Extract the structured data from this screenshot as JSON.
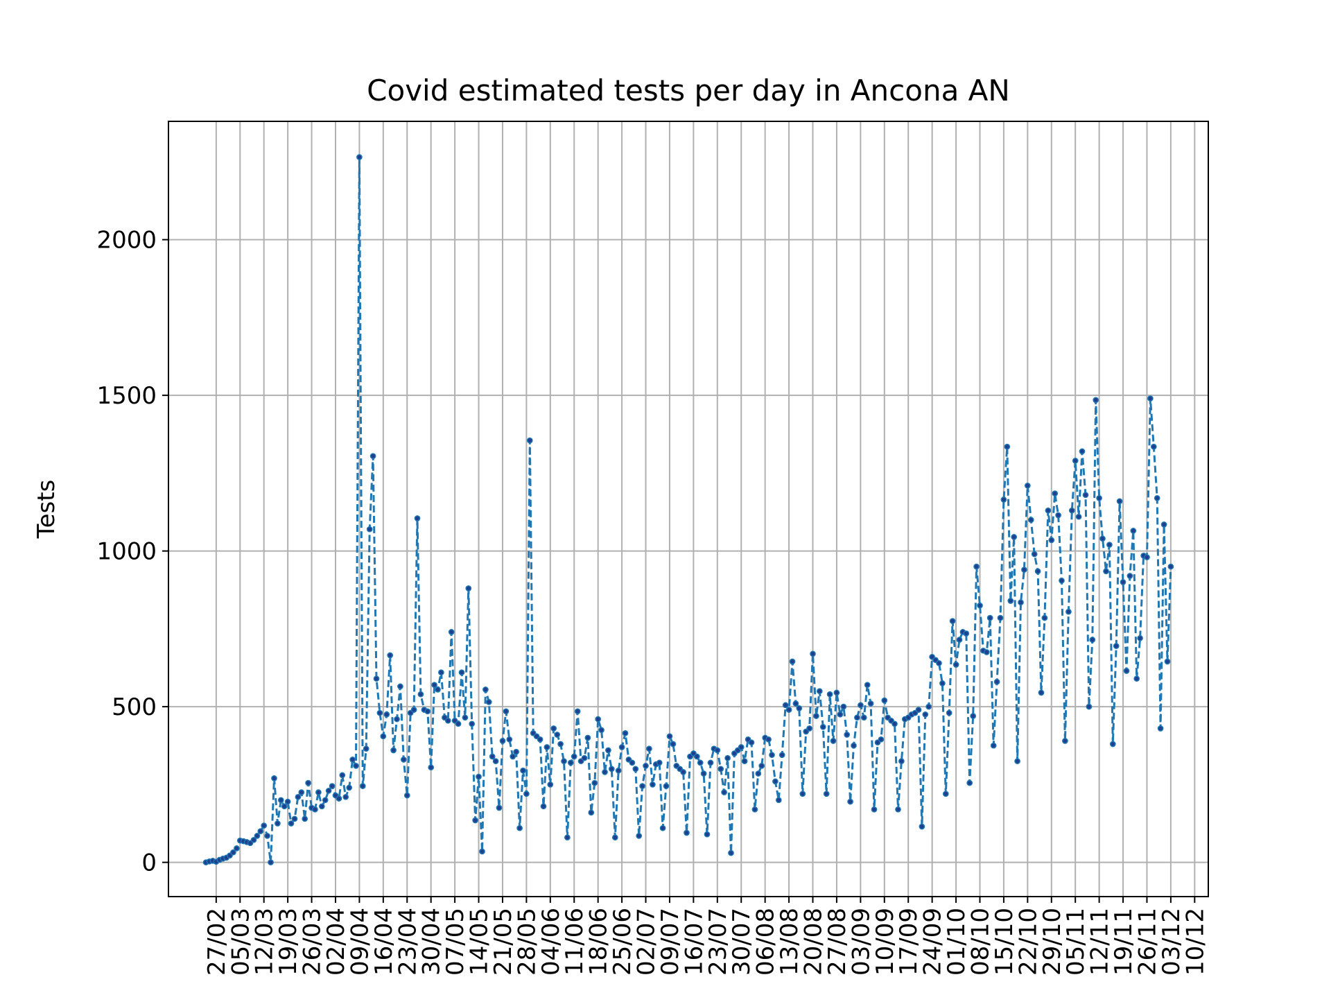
{
  "chart_data": {
    "type": "line",
    "title": "Covid estimated tests per day in Ancona AN",
    "xlabel": "",
    "ylabel": "Tests",
    "ylim": [
      -110,
      2380
    ],
    "yticks": [
      0,
      500,
      1000,
      1500,
      2000
    ],
    "grid": true,
    "legend": "none",
    "colors": {
      "line": "#1f77b4",
      "marker": "#1f3f8f",
      "grid": "#b0b0b0",
      "axes": "#000000"
    },
    "x_start": "2020-02-24",
    "xticks": [
      {
        "label": "27/02",
        "index": 3
      },
      {
        "label": "05/03",
        "index": 10
      },
      {
        "label": "12/03",
        "index": 17
      },
      {
        "label": "19/03",
        "index": 24
      },
      {
        "label": "26/03",
        "index": 31
      },
      {
        "label": "02/04",
        "index": 38
      },
      {
        "label": "09/04",
        "index": 45
      },
      {
        "label": "16/04",
        "index": 52
      },
      {
        "label": "23/04",
        "index": 59
      },
      {
        "label": "30/04",
        "index": 66
      },
      {
        "label": "07/05",
        "index": 73
      },
      {
        "label": "14/05",
        "index": 80
      },
      {
        "label": "21/05",
        "index": 87
      },
      {
        "label": "28/05",
        "index": 94
      },
      {
        "label": "04/06",
        "index": 101
      },
      {
        "label": "11/06",
        "index": 108
      },
      {
        "label": "18/06",
        "index": 115
      },
      {
        "label": "25/06",
        "index": 122
      },
      {
        "label": "02/07",
        "index": 129
      },
      {
        "label": "09/07",
        "index": 136
      },
      {
        "label": "16/07",
        "index": 143
      },
      {
        "label": "23/07",
        "index": 150
      },
      {
        "label": "30/07",
        "index": 157
      },
      {
        "label": "06/08",
        "index": 164
      },
      {
        "label": "13/08",
        "index": 171
      },
      {
        "label": "20/08",
        "index": 178
      },
      {
        "label": "27/08",
        "index": 185
      },
      {
        "label": "03/09",
        "index": 192
      },
      {
        "label": "10/09",
        "index": 199
      },
      {
        "label": "17/09",
        "index": 206
      },
      {
        "label": "24/09",
        "index": 213
      },
      {
        "label": "01/10",
        "index": 220
      },
      {
        "label": "08/10",
        "index": 227
      },
      {
        "label": "15/10",
        "index": 234
      },
      {
        "label": "22/10",
        "index": 241
      },
      {
        "label": "29/10",
        "index": 248
      },
      {
        "label": "05/11",
        "index": 255
      },
      {
        "label": "12/11",
        "index": 262
      },
      {
        "label": "19/11",
        "index": 269
      },
      {
        "label": "26/11",
        "index": 276
      },
      {
        "label": "03/12",
        "index": 283
      },
      {
        "label": "10/12",
        "index": 290
      }
    ],
    "series": [
      {
        "values": [
          0,
          3,
          5,
          2,
          8,
          12,
          15,
          22,
          32,
          45,
          70,
          68,
          65,
          62,
          72,
          85,
          100,
          118,
          85,
          0,
          270,
          125,
          200,
          180,
          195,
          125,
          140,
          210,
          225,
          140,
          255,
          175,
          170,
          225,
          180,
          200,
          230,
          245,
          215,
          205,
          280,
          210,
          240,
          330,
          310,
          2265,
          245,
          365,
          1070,
          1305,
          590,
          480,
          405,
          475,
          665,
          360,
          460,
          565,
          330,
          215,
          480,
          490,
          1105,
          540,
          490,
          485,
          305,
          570,
          555,
          610,
          465,
          455,
          740,
          455,
          445,
          610,
          465,
          880,
          445,
          135,
          275,
          35,
          555,
          515,
          340,
          325,
          175,
          390,
          485,
          395,
          340,
          355,
          110,
          295,
          220,
          1355,
          415,
          405,
          395,
          180,
          370,
          250,
          430,
          410,
          380,
          325,
          80,
          320,
          340,
          485,
          325,
          335,
          400,
          160,
          255,
          460,
          425,
          290,
          360,
          300,
          80,
          295,
          370,
          415,
          330,
          320,
          300,
          85,
          245,
          310,
          365,
          250,
          315,
          320,
          110,
          245,
          405,
          380,
          310,
          300,
          290,
          95,
          340,
          350,
          340,
          320,
          285,
          90,
          320,
          365,
          360,
          300,
          225,
          335,
          30,
          350,
          360,
          370,
          325,
          395,
          385,
          170,
          285,
          310,
          400,
          395,
          345,
          260,
          200,
          345,
          505,
          490,
          645,
          510,
          495,
          220,
          420,
          430,
          670,
          470,
          550,
          435,
          220,
          540,
          390,
          545,
          475,
          500,
          410,
          195,
          375,
          465,
          505,
          465,
          570,
          510,
          170,
          385,
          395,
          520,
          465,
          455,
          445,
          170,
          325,
          460,
          465,
          475,
          480,
          490,
          115,
          475,
          500,
          660,
          650,
          640,
          575,
          220,
          480,
          775,
          635,
          715,
          740,
          735,
          255,
          470,
          950,
          825,
          680,
          675,
          785,
          375,
          580,
          785,
          1165,
          1335,
          840,
          1045,
          325,
          835,
          940,
          1210,
          1100,
          990,
          935,
          545,
          785,
          1130,
          1035,
          1185,
          1115,
          905,
          390,
          805,
          1130,
          1290,
          1110,
          1320,
          1180,
          500,
          715,
          1485,
          1170,
          1040,
          935,
          1020,
          380,
          695,
          1160,
          900,
          615,
          920,
          1065,
          590,
          720,
          985,
          980,
          1490,
          1335,
          1170,
          430,
          1085,
          645,
          950
        ]
      }
    ]
  }
}
